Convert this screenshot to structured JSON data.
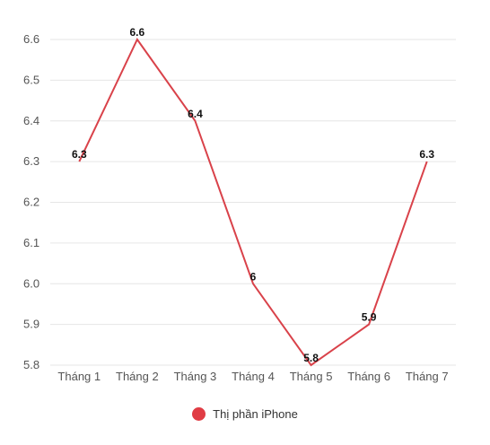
{
  "chart_data": {
    "type": "line",
    "categories": [
      "Tháng 1",
      "Tháng 2",
      "Tháng 3",
      "Tháng 4",
      "Tháng 5",
      "Tháng 6",
      "Tháng 7"
    ],
    "series": [
      {
        "name": "Thị phần iPhone",
        "values": [
          6.3,
          6.6,
          6.4,
          6,
          5.8,
          5.9,
          6.3
        ],
        "labels": [
          "6.3",
          "6.6",
          "6.4",
          "6",
          "5.8",
          "5.9",
          "6.3"
        ]
      }
    ],
    "y_ticks": [
      "5.8",
      "5.9",
      "6.0",
      "6.1",
      "6.2",
      "6.3",
      "6.4",
      "6.5",
      "6.6"
    ],
    "ylim": [
      5.8,
      6.6
    ],
    "grid": true,
    "legend_position": "bottom",
    "colors": {
      "line": "#d9424a",
      "grid": "#e6e6e6",
      "legend_dot": "#e03c44"
    }
  }
}
